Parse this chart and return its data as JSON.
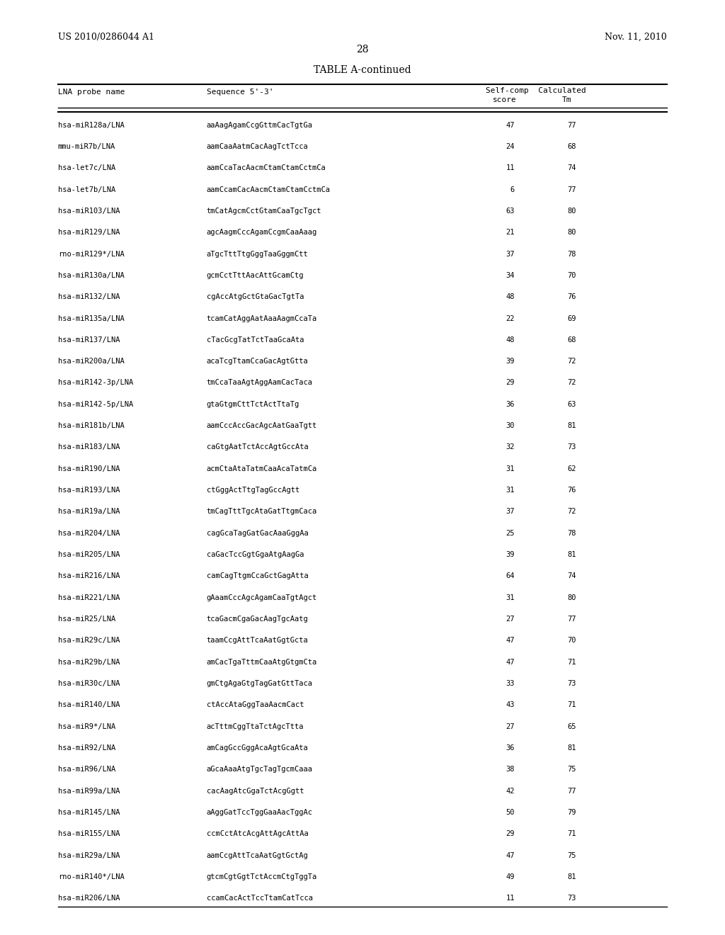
{
  "header_left": "US 2010/0286044 A1",
  "header_right": "Nov. 11, 2010",
  "page_number": "28",
  "table_title": "TABLE A-continued",
  "col_headers": [
    "LNA probe name",
    "Sequence 5'-3'",
    "Self-comp\nscore",
    "Calculated\nTm"
  ],
  "rows": [
    [
      "hsa-miR128a/LNA",
      "aaAagAgamCcgGttmCacTgtGa",
      "47",
      "77"
    ],
    [
      "mmu-miR7b/LNA",
      "aamCaaAatmCacAagTctTcca",
      "24",
      "68"
    ],
    [
      "hsa-let7c/LNA",
      "aamCcaTacAacmCtamCtamCctmCa",
      "11",
      "74"
    ],
    [
      "hsa-let7b/LNA",
      "aamCcamCacAacmCtamCtamCctmCa",
      "6",
      "77"
    ],
    [
      "hsa-miR103/LNA",
      "tmCatAgcmCctGtamCaaTgcTgct",
      "63",
      "80"
    ],
    [
      "hsa-miR129/LNA",
      "agcAagmCccAgamCcgmCaaAaag",
      "21",
      "80"
    ],
    [
      "rno-miR129*/LNA",
      "aTgcTttTtgGggTaaGggmCtt",
      "37",
      "78"
    ],
    [
      "hsa-miR130a/LNA",
      "gcmCctTttAacAttGcamCtg",
      "34",
      "70"
    ],
    [
      "hsa-miR132/LNA",
      "cgAccAtgGctGtaGacTgtTa",
      "48",
      "76"
    ],
    [
      "hsa-miR135a/LNA",
      "tcamCatAggAatAaaAagmCcaTa",
      "22",
      "69"
    ],
    [
      "hsa-miR137/LNA",
      "cTacGcgTatTctTaaGcaAta",
      "48",
      "68"
    ],
    [
      "hsa-miR200a/LNA",
      "acaTcgTtamCcaGacAgtGtta",
      "39",
      "72"
    ],
    [
      "hsa-miR142-3p/LNA",
      "tmCcaTaaAgtAggAamCacTaca",
      "29",
      "72"
    ],
    [
      "hsa-miR142-5p/LNA",
      "gtaGtgmCttTctActTtaTg",
      "36",
      "63"
    ],
    [
      "hsa-miR181b/LNA",
      "aamCccAccGacAgcAatGaaTgtt",
      "30",
      "81"
    ],
    [
      "hsa-miR183/LNA",
      "caGtgAatTctAccAgtGccAta",
      "32",
      "73"
    ],
    [
      "hsa-miR190/LNA",
      "acmCtaAtaTatmCaaAcaTatmCa",
      "31",
      "62"
    ],
    [
      "hsa-miR193/LNA",
      "ctGggActTtgTagGccAgtt",
      "31",
      "76"
    ],
    [
      "hsa-miR19a/LNA",
      "tmCagTttTgcAtaGatTtgmCaca",
      "37",
      "72"
    ],
    [
      "hsa-miR204/LNA",
      "cagGcaTagGatGacAaaGggAa",
      "25",
      "78"
    ],
    [
      "hsa-miR205/LNA",
      "caGacTccGgtGgaAtgAagGa",
      "39",
      "81"
    ],
    [
      "hsa-miR216/LNA",
      "camCagTtgmCcaGctGagAtta",
      "64",
      "74"
    ],
    [
      "hsa-miR221/LNA",
      "gAaamCccAgcAgamCaaTgtAgct",
      "31",
      "80"
    ],
    [
      "hsa-miR25/LNA",
      "tcaGacmCgaGacAagTgcAatg",
      "27",
      "77"
    ],
    [
      "hsa-miR29c/LNA",
      "taamCcgAttTcaAatGgtGcta",
      "47",
      "70"
    ],
    [
      "hsa-miR29b/LNA",
      "amCacTgaTttmCaaAtgGtgmCta",
      "47",
      "71"
    ],
    [
      "hsa-miR30c/LNA",
      "gmCtgAgaGtgTagGatGttTaca",
      "33",
      "73"
    ],
    [
      "hsa-miR140/LNA",
      "ctAccAtaGggTaaAacmCact",
      "43",
      "71"
    ],
    [
      "hsa-miR9*/LNA",
      "acTttmCggTtaTctAgcTtta",
      "27",
      "65"
    ],
    [
      "hsa-miR92/LNA",
      "amCagGccGggAcaAgtGcaAta",
      "36",
      "81"
    ],
    [
      "hsa-miR96/LNA",
      "aGcaAaaAtgTgcTagTgcmCaaa",
      "38",
      "75"
    ],
    [
      "hsa-miR99a/LNA",
      "cacAagAtcGgaTctAcgGgtt",
      "42",
      "77"
    ],
    [
      "hsa-miR145/LNA",
      "aAggGatTccTggGaaAacTggAc",
      "50",
      "79"
    ],
    [
      "hsa-miR155/LNA",
      "ccmCctAtcAcgAttAgcAttAa",
      "29",
      "71"
    ],
    [
      "hsa-miR29a/LNA",
      "aamCcgAttTcaAatGgtGctAg",
      "47",
      "75"
    ],
    [
      "rno-miR140*/LNA",
      "gtcmCgtGgtTctAccmCtgTggTa",
      "49",
      "81"
    ],
    [
      "hsa-miR206/LNA",
      "ccamCacActTccTtamCatTcca",
      "11",
      "73"
    ]
  ]
}
